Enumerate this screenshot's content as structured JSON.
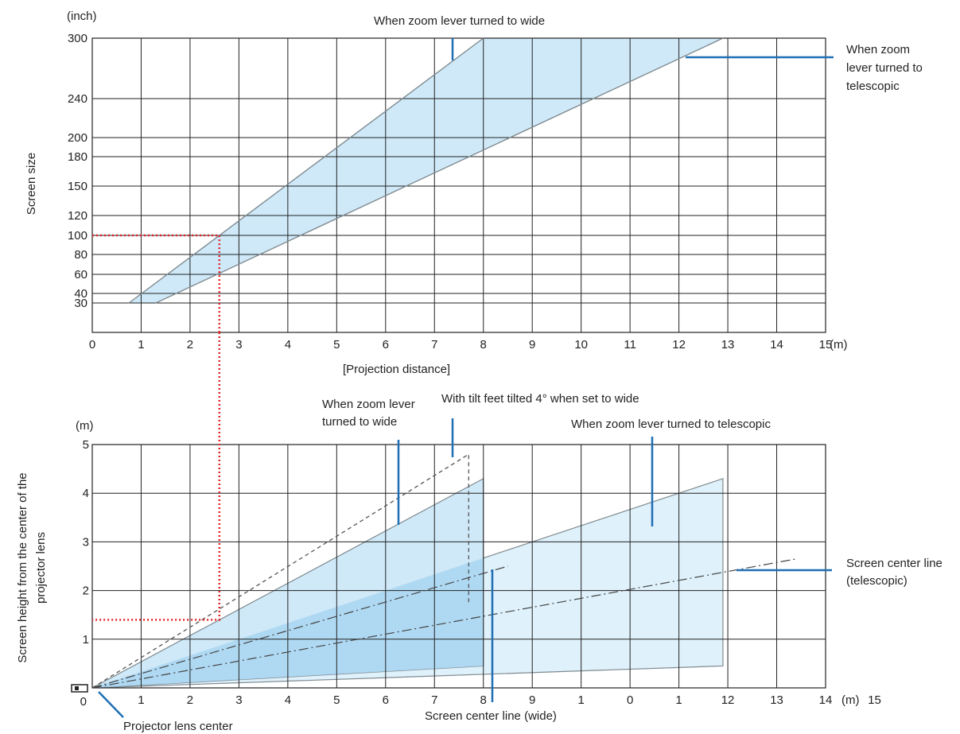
{
  "colors": {
    "grid": "#222222",
    "area_fill": "#cfe9f8",
    "area_fill_dark": "#a9d6f2",
    "area_edge": "#7f8a90",
    "callout": "#1f6fb4",
    "example": "#e0262b"
  },
  "chart_data": [
    {
      "type": "area",
      "y_unit_label": "(inch)",
      "x_unit_label": "(m)",
      "ylabel": "Screen size",
      "xlabel": "[Projection distance]",
      "x_ticks": [
        "0",
        "1",
        "2",
        "3",
        "4",
        "5",
        "6",
        "7",
        "8",
        "9",
        "10",
        "11",
        "12",
        "13",
        "14",
        "15"
      ],
      "y_ticks": [
        "30",
        "40",
        "60",
        "80",
        "100",
        "120",
        "150",
        "180",
        "200",
        "240",
        "300"
      ],
      "xlim": [
        0,
        15
      ],
      "grid": true,
      "series": [
        {
          "name": "When zoom lever turned to wide",
          "x": [
            0.75,
            8.0
          ],
          "y": [
            30,
            300
          ]
        },
        {
          "name": "When zoom lever turned to telescopic",
          "x": [
            1.3,
            12.9
          ],
          "y": [
            30,
            300
          ]
        }
      ],
      "example": {
        "x": 2.6,
        "y": 100
      },
      "annotations": [
        {
          "id": "wide",
          "text": [
            "When zoom lever turned to wide"
          ]
        },
        {
          "id": "tele",
          "text": [
            "When zoom",
            "lever turned to",
            "telescopic"
          ]
        }
      ]
    },
    {
      "type": "area",
      "y_unit_label": "(m)",
      "x_unit_label": "(m)",
      "ylabel": [
        "Screen height from the center of the",
        "projector lens"
      ],
      "x_ticks": [
        "1",
        "2",
        "3",
        "4",
        "5",
        "6",
        "7",
        "8",
        "9",
        "1",
        "0",
        "1",
        "12",
        "13",
        "14",
        "15"
      ],
      "y_ticks": [
        "0",
        "1",
        "2",
        "3",
        "4",
        "5"
      ],
      "ylim": [
        0,
        5
      ],
      "grid": true,
      "series": [
        {
          "name": "When zoom lever turned to wide",
          "top": [
            [
              0,
              0
            ],
            [
              8.0,
              4.3
            ]
          ],
          "bottom": [
            [
              0,
              0
            ],
            [
              8.0,
              0.45
            ]
          ]
        },
        {
          "name": "When zoom lever turned to telescopic",
          "top": [
            [
              0,
              0
            ],
            [
              12.9,
              4.3
            ]
          ],
          "bottom": [
            [
              0,
              0
            ],
            [
              12.9,
              0.45
            ]
          ]
        },
        {
          "name": "With tilt feet tilted 4° when set to wide",
          "top": [
            [
              0,
              0
            ],
            [
              7.7,
              4.8
            ]
          ]
        },
        {
          "name": "Screen center line (wide)",
          "line": [
            [
              0,
              0
            ],
            [
              8.5,
              2.5
            ]
          ]
        },
        {
          "name": "Screen center line (telescopic)",
          "line": [
            [
              0,
              0
            ],
            [
              14.4,
              2.65
            ]
          ]
        }
      ],
      "example": {
        "x": 2.6,
        "y": 1.4
      },
      "annotations": [
        {
          "id": "wide",
          "text": [
            "When zoom lever",
            "turned to wide"
          ]
        },
        {
          "id": "tilt",
          "text": [
            "With tilt feet tilted 4° when set to wide"
          ]
        },
        {
          "id": "tele",
          "text": [
            "When zoom lever turned to telescopic"
          ]
        },
        {
          "id": "center_tele",
          "text": [
            "Screen center line",
            "(telescopic)"
          ]
        },
        {
          "id": "center_wide",
          "text": [
            "Screen center line (wide)"
          ]
        },
        {
          "id": "lens",
          "text": [
            "Projector lens center"
          ]
        }
      ]
    }
  ]
}
